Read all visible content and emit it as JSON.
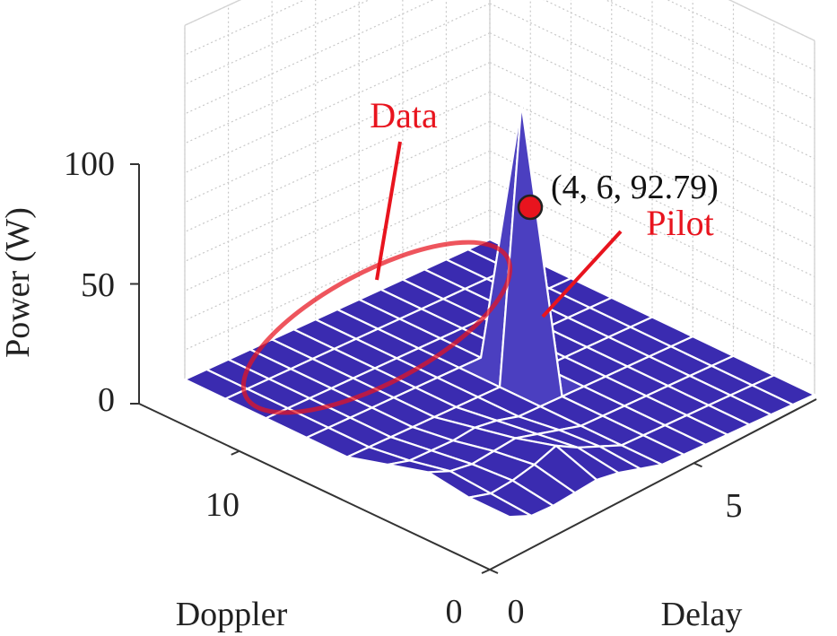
{
  "chart_data": {
    "type": "surface",
    "x_axis": {
      "label": "Delay",
      "range": [
        0,
        8
      ],
      "ticks": [
        0,
        5
      ],
      "tick_labels": [
        "0",
        "5"
      ]
    },
    "y_axis": {
      "label": "Doppler",
      "range": [
        0,
        14
      ],
      "ticks": [
        0,
        10
      ],
      "tick_labels": [
        "0",
        "10"
      ]
    },
    "z_axis": {
      "label": "Power (W)",
      "range": [
        0,
        100
      ],
      "ticks": [
        0,
        50,
        100
      ],
      "tick_labels": [
        "0",
        "50",
        "100"
      ]
    },
    "grid": true,
    "surface_color": "#3a2bb0",
    "mesh_color": "#ffffff",
    "delay_values": [
      0,
      1,
      2,
      3,
      4,
      5,
      6,
      7,
      8
    ],
    "doppler_values": [
      0,
      1,
      2,
      3,
      4,
      5,
      6,
      7,
      8,
      9,
      10,
      11,
      12,
      13,
      14
    ],
    "power": [
      [
        0,
        0,
        0,
        0,
        0,
        0,
        0,
        0,
        0
      ],
      [
        0,
        0,
        0,
        0,
        0,
        0,
        0,
        0,
        0
      ],
      [
        0,
        0,
        0,
        0,
        0,
        0,
        0,
        0,
        0
      ],
      [
        0,
        0,
        0,
        0,
        0,
        0,
        0,
        0,
        0
      ],
      [
        0,
        0,
        0,
        0,
        0,
        0,
        0,
        0,
        0
      ],
      [
        0,
        0,
        0,
        0,
        0,
        0,
        0,
        0,
        0
      ],
      [
        0,
        0,
        0,
        0,
        92.79,
        0,
        0,
        0,
        0
      ],
      [
        0,
        0,
        0,
        0,
        0,
        0,
        0,
        0,
        0
      ],
      [
        0,
        0,
        0,
        0,
        0,
        0,
        2,
        3,
        2
      ],
      [
        0,
        0,
        0,
        0,
        0,
        2,
        4,
        6,
        4
      ],
      [
        0,
        0,
        0,
        0,
        0,
        3,
        6,
        10,
        5
      ],
      [
        0,
        0,
        0,
        0,
        0,
        2,
        5,
        7,
        4
      ],
      [
        0,
        0,
        0,
        0,
        0,
        2,
        4,
        5,
        3
      ],
      [
        0,
        0,
        0,
        0,
        0,
        2,
        5,
        4,
        3
      ],
      [
        0,
        0,
        0,
        0,
        0,
        4,
        8,
        6,
        6
      ]
    ],
    "annotations": [
      {
        "text": "Data",
        "color": "#e8141e"
      },
      {
        "text": "Pilot",
        "color": "#e8141e"
      },
      {
        "text": "(4, 6, 92.79)",
        "color": "#111111"
      }
    ],
    "peak_point": {
      "delay": 4,
      "doppler": 6,
      "power": 92.79,
      "color": "#e8141e"
    }
  }
}
